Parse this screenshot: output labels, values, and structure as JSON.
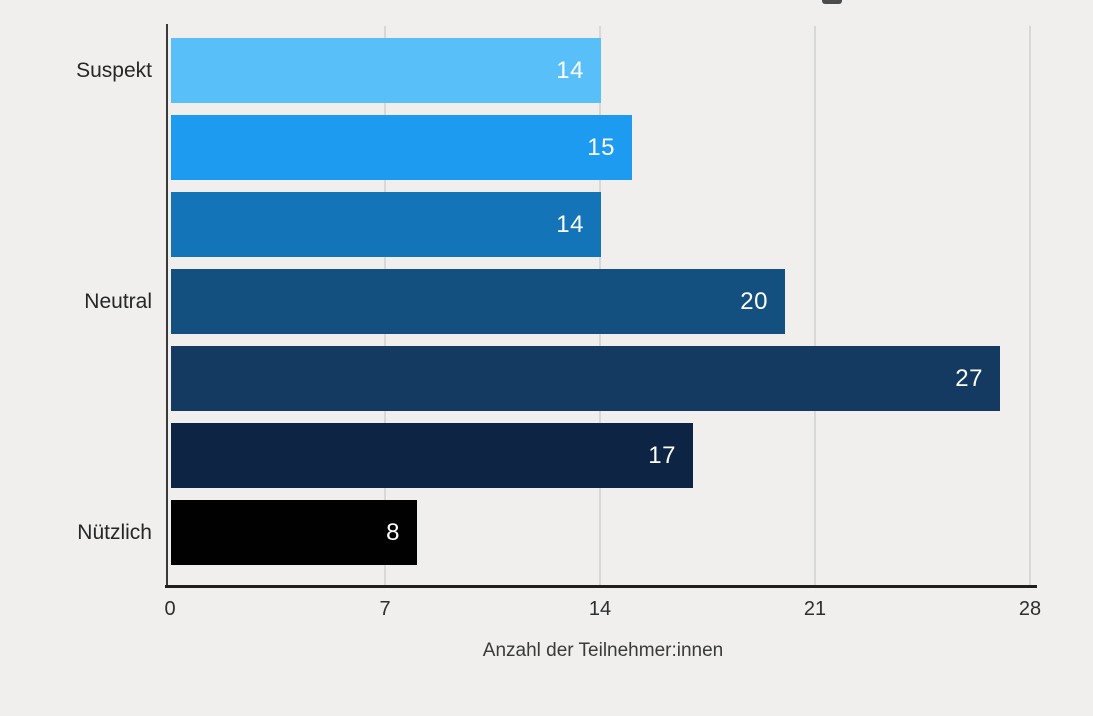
{
  "chart_data": {
    "type": "bar",
    "orientation": "horizontal",
    "title": "",
    "xlabel": "Anzahl der Teilnehmer:innen",
    "ylabel": "",
    "categories": [
      "Suspekt",
      "",
      "",
      "Neutral",
      "",
      "",
      "Nützlich"
    ],
    "values": [
      14,
      15,
      14,
      20,
      27,
      17,
      8
    ],
    "bar_colors": [
      "#59bff8",
      "#1d9bf0",
      "#1374b8",
      "#14507f",
      "#143a61",
      "#0d2444",
      "#010102"
    ],
    "value_label_color": "#ffffff",
    "xlim": [
      0,
      28
    ],
    "x_ticks": [
      0,
      7,
      14,
      21,
      28
    ],
    "grid": true,
    "legend": false,
    "background_color": "#f0efee"
  }
}
